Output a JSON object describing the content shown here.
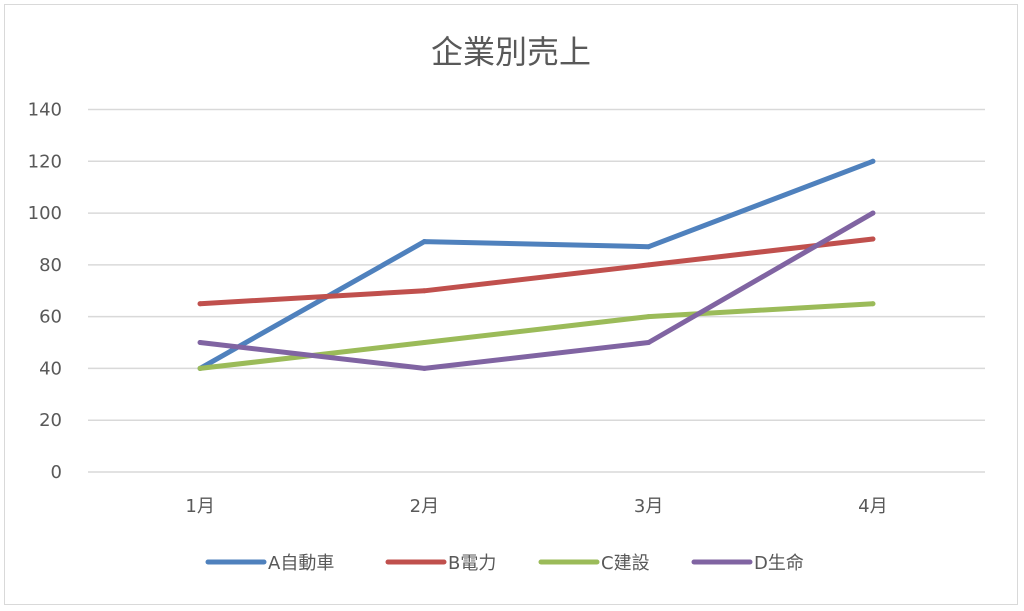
{
  "chart_data": {
    "type": "line",
    "title": "企業別売上",
    "xlabel": "",
    "ylabel": "",
    "categories": [
      "1月",
      "2月",
      "3月",
      "4月"
    ],
    "ylim": [
      0,
      140
    ],
    "yticks": [
      0,
      20,
      40,
      60,
      80,
      100,
      120,
      140
    ],
    "grid": true,
    "legend_position": "bottom",
    "series": [
      {
        "name": "A自動車",
        "color": "#4f81bd",
        "values": [
          40,
          89,
          87,
          120
        ]
      },
      {
        "name": "B電力",
        "color": "#c0504d",
        "values": [
          65,
          70,
          80,
          90
        ]
      },
      {
        "name": "C建設",
        "color": "#9bbb59",
        "values": [
          40,
          50,
          60,
          65
        ]
      },
      {
        "name": "D生命",
        "color": "#8064a2",
        "values": [
          50,
          40,
          50,
          100
        ]
      }
    ]
  }
}
